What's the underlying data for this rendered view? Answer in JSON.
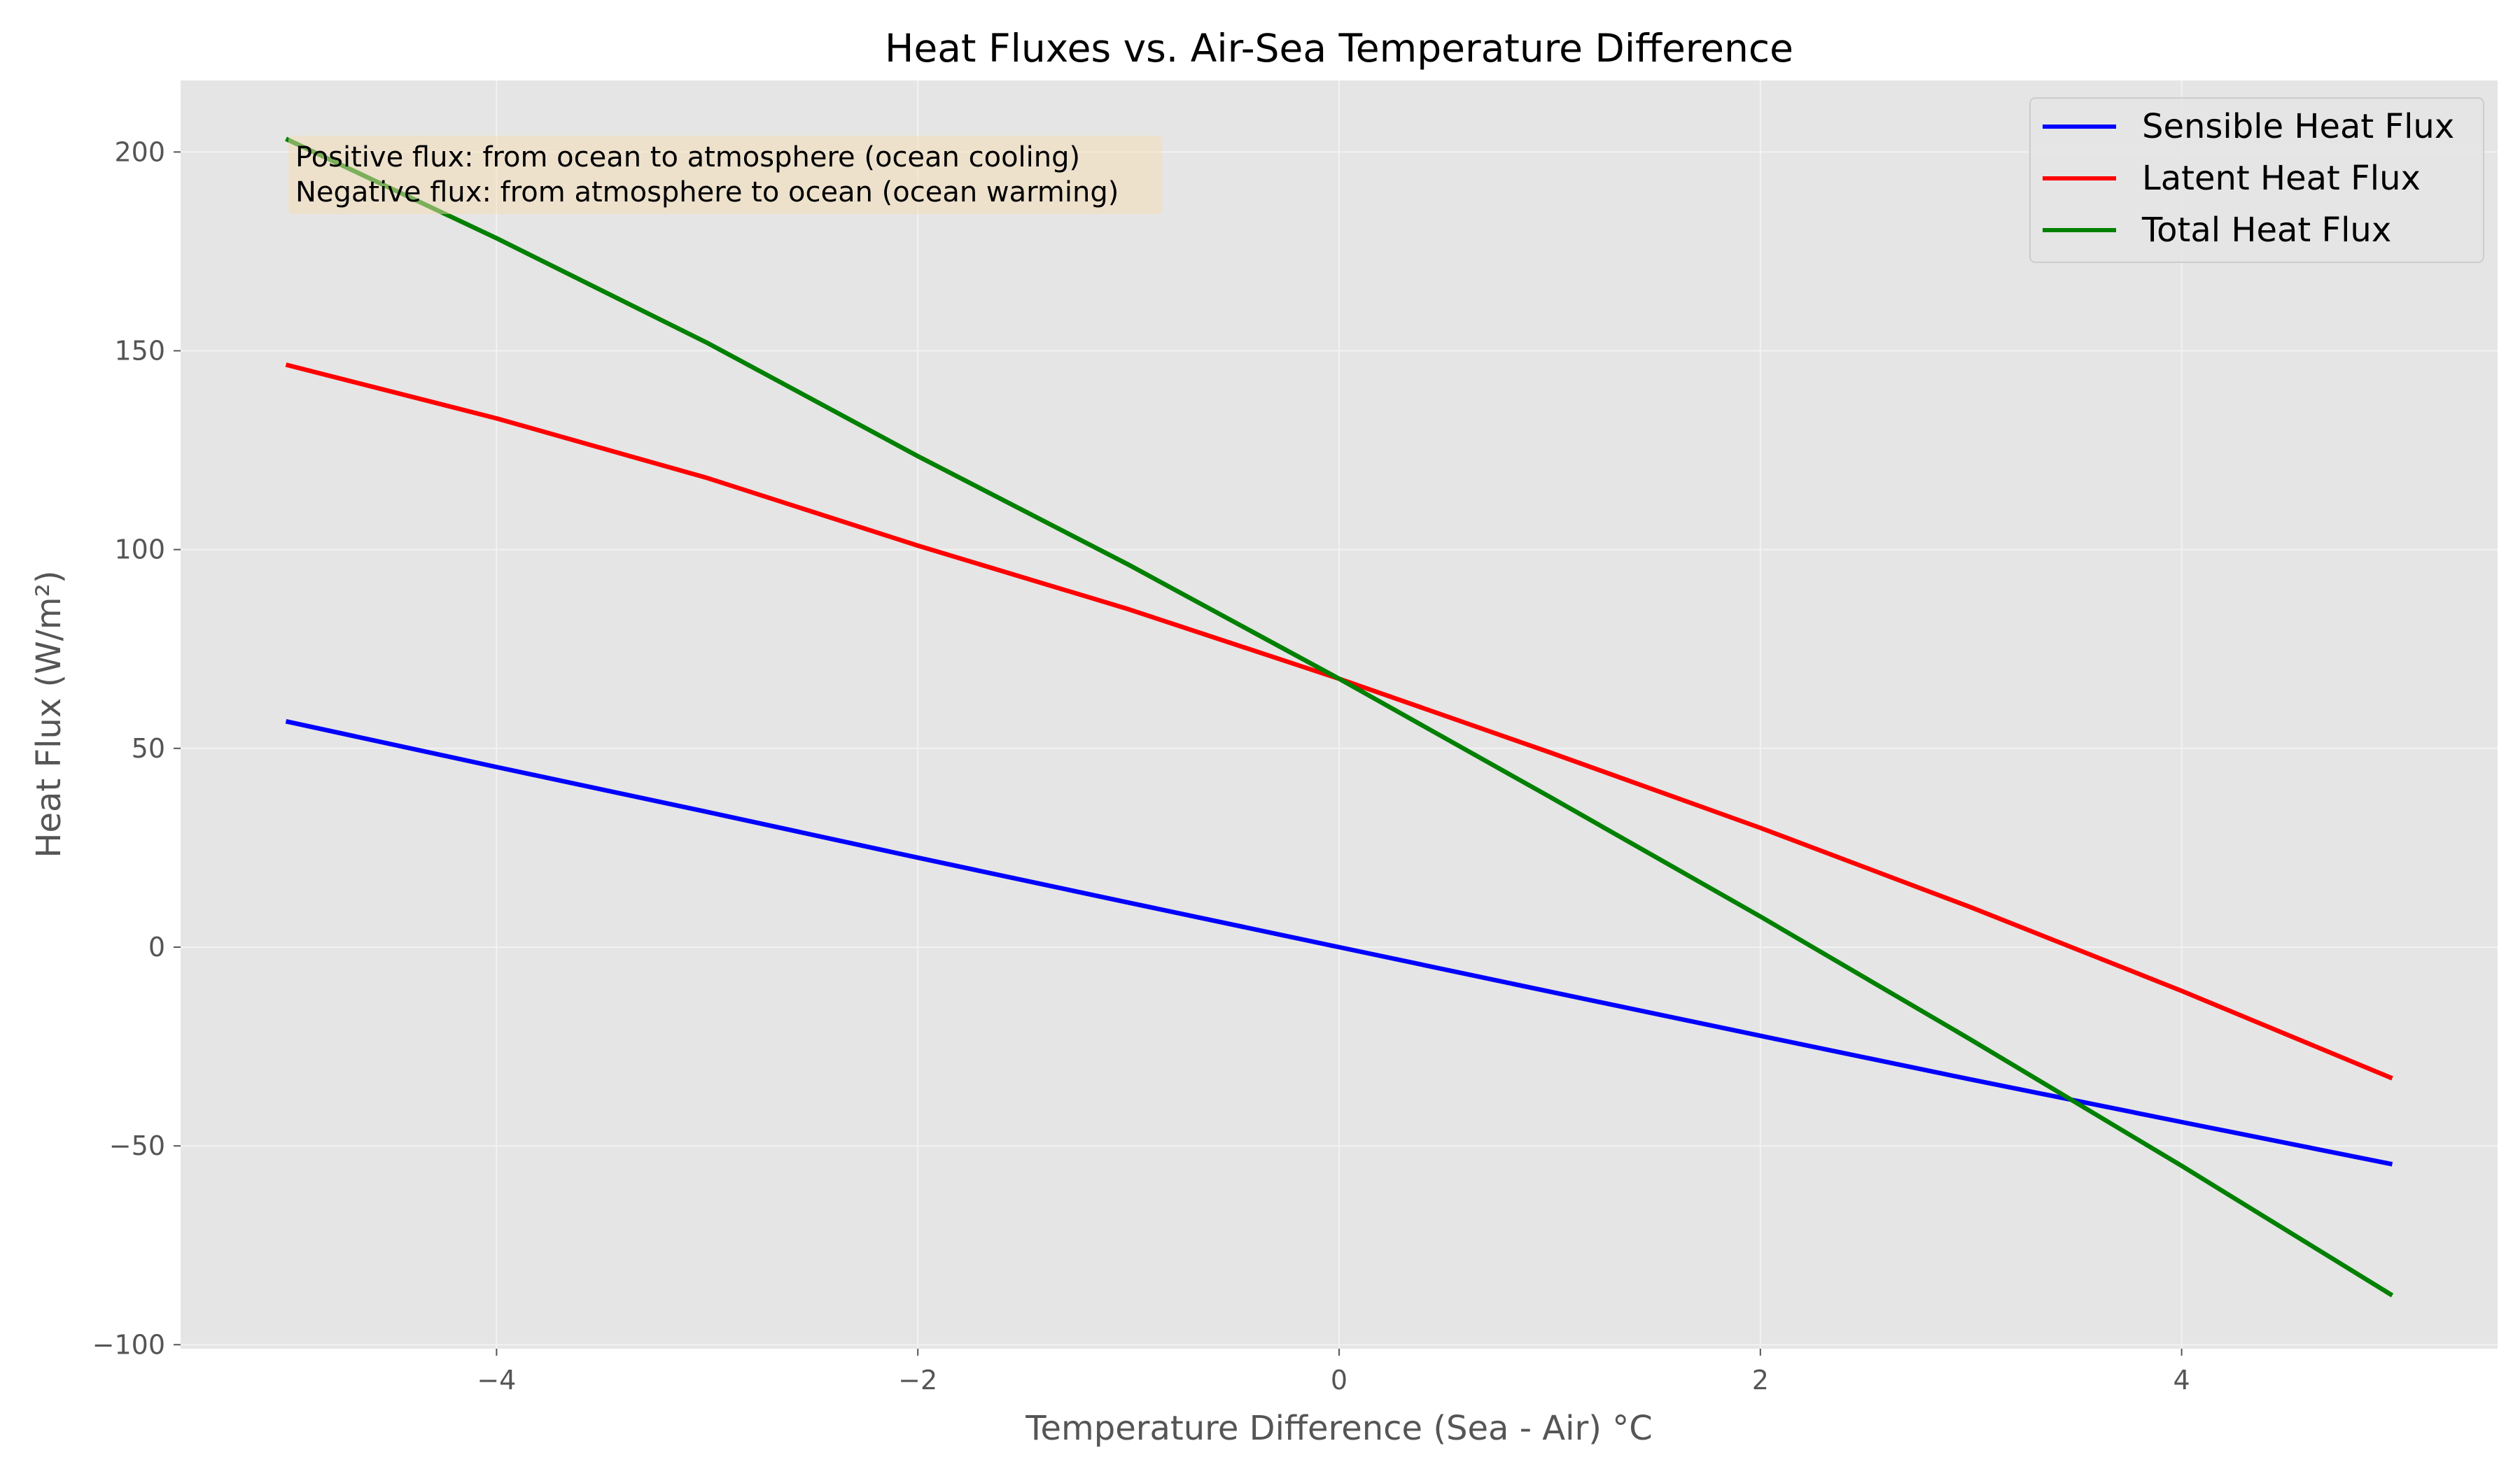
{
  "chart_data": {
    "type": "line",
    "title": "Heat Fluxes vs. Air-Sea Temperature Difference",
    "xlabel": "Temperature Difference (Sea - Air) °C",
    "ylabel": "Heat Flux (W/m²)",
    "xlim": [
      -5.5,
      5.5
    ],
    "ylim": [
      -101,
      218
    ],
    "x_ticks": [
      -4,
      -2,
      0,
      2,
      4
    ],
    "x_tick_labels": [
      "−4",
      "−2",
      "0",
      "2",
      "4"
    ],
    "y_ticks": [
      -100,
      -50,
      0,
      50,
      100,
      150,
      200
    ],
    "y_tick_labels": [
      "−100",
      "−50",
      "0",
      "50",
      "100",
      "150",
      "200"
    ],
    "grid": true,
    "legend_location": "top-right",
    "x": [
      -5,
      -4,
      -3,
      -2,
      -1,
      0,
      1,
      2,
      3,
      4,
      5
    ],
    "series": [
      {
        "name": "Sensible Heat Flux",
        "color": "#0000ff",
        "values": [
          56.8,
          45.3,
          34.0,
          22.5,
          11.2,
          0.0,
          -11.2,
          -22.3,
          -33.3,
          -44.0,
          -54.6
        ]
      },
      {
        "name": "Latent Heat Flux",
        "color": "#ff0000",
        "values": [
          146.5,
          133.0,
          118.0,
          101.0,
          85.0,
          67.5,
          49.0,
          30.0,
          10.0,
          -11.0,
          -33.0
        ]
      },
      {
        "name": "Total Heat Flux",
        "color": "#008000",
        "values": [
          203.3,
          178.3,
          152.0,
          123.5,
          96.2,
          67.5,
          37.8,
          7.7,
          -23.3,
          -55.0,
          -87.6
        ]
      }
    ],
    "annotation": {
      "lines": [
        "Positive flux: from ocean to atmosphere (ocean cooling)",
        "Negative flux: from atmosphere to ocean (ocean warming)"
      ],
      "box_color": "#f5deb3"
    },
    "colors": {
      "plot_background": "#e5e5e5",
      "grid": "#f2f2f2"
    }
  }
}
